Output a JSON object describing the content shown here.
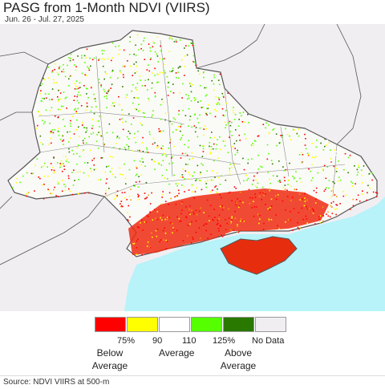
{
  "header": {
    "title": "PASG from 1-Month NDVI (VIIRS)",
    "date_range": "Jun. 26 - Jul. 27, 2025"
  },
  "colors": {
    "neighbor_land": "#f1eef2",
    "sea": "#b7f3f9",
    "border": "#555555",
    "oblast_border": "#888888"
  },
  "legend": {
    "items": [
      {
        "color": "#ff0000",
        "tick": "75%"
      },
      {
        "color": "#ffff00",
        "tick": "90"
      },
      {
        "color": "#ffffff",
        "tick": "110"
      },
      {
        "color": "#55ff00",
        "tick": "125%"
      },
      {
        "color": "#297800",
        "tick": ""
      },
      {
        "color": "#f1eef2",
        "tick": "No Data"
      }
    ],
    "below_average": "Below Average",
    "average": "Average",
    "above_average": "Above Average"
  },
  "footer": {
    "source": "Source: NDVI VIIRS at 500-m"
  }
}
